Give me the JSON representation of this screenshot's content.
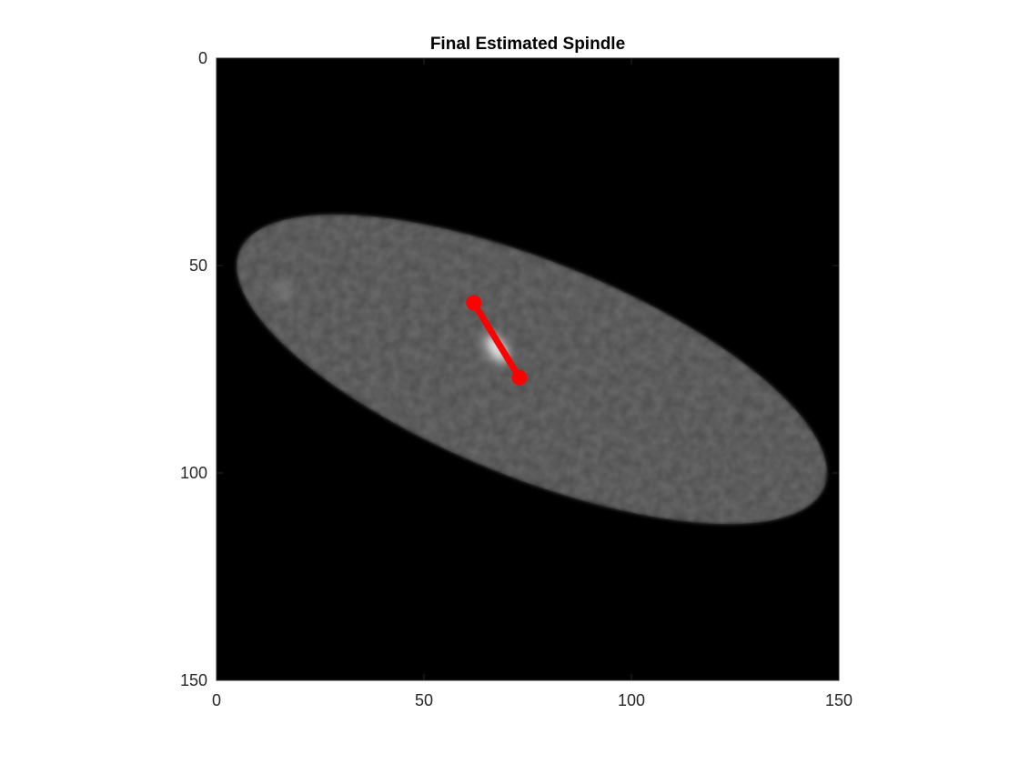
{
  "chart_data": {
    "type": "image",
    "title": "Final Estimated Spindle",
    "xlabel": "",
    "ylabel": "",
    "xlim": [
      0,
      150
    ],
    "ylim": [
      0,
      150
    ],
    "y_reversed": true,
    "x_ticks": [
      0,
      50,
      100,
      150
    ],
    "y_ticks": [
      0,
      50,
      100,
      150
    ],
    "x_tick_labels": [
      "0",
      "50",
      "100",
      "150"
    ],
    "y_tick_labels": [
      "0",
      "50",
      "100",
      "150"
    ],
    "grid": false,
    "colormap": "gray",
    "background_color": "#000000",
    "cell": {
      "shape": "ellipse",
      "center": [
        76,
        75
      ],
      "semi_axes": [
        76,
        26
      ],
      "angle_deg": 22,
      "intensity_color": "#4d4d4d"
    },
    "bright_spots": [
      {
        "x": 67.5,
        "y": 70,
        "color": "#ffffff"
      },
      {
        "x": 16,
        "y": 56,
        "color": "#a6a6a6"
      }
    ],
    "spindle": {
      "color": "#ff0000",
      "points": [
        {
          "x": 62,
          "y": 59
        },
        {
          "x": 73,
          "y": 77
        }
      ]
    }
  }
}
